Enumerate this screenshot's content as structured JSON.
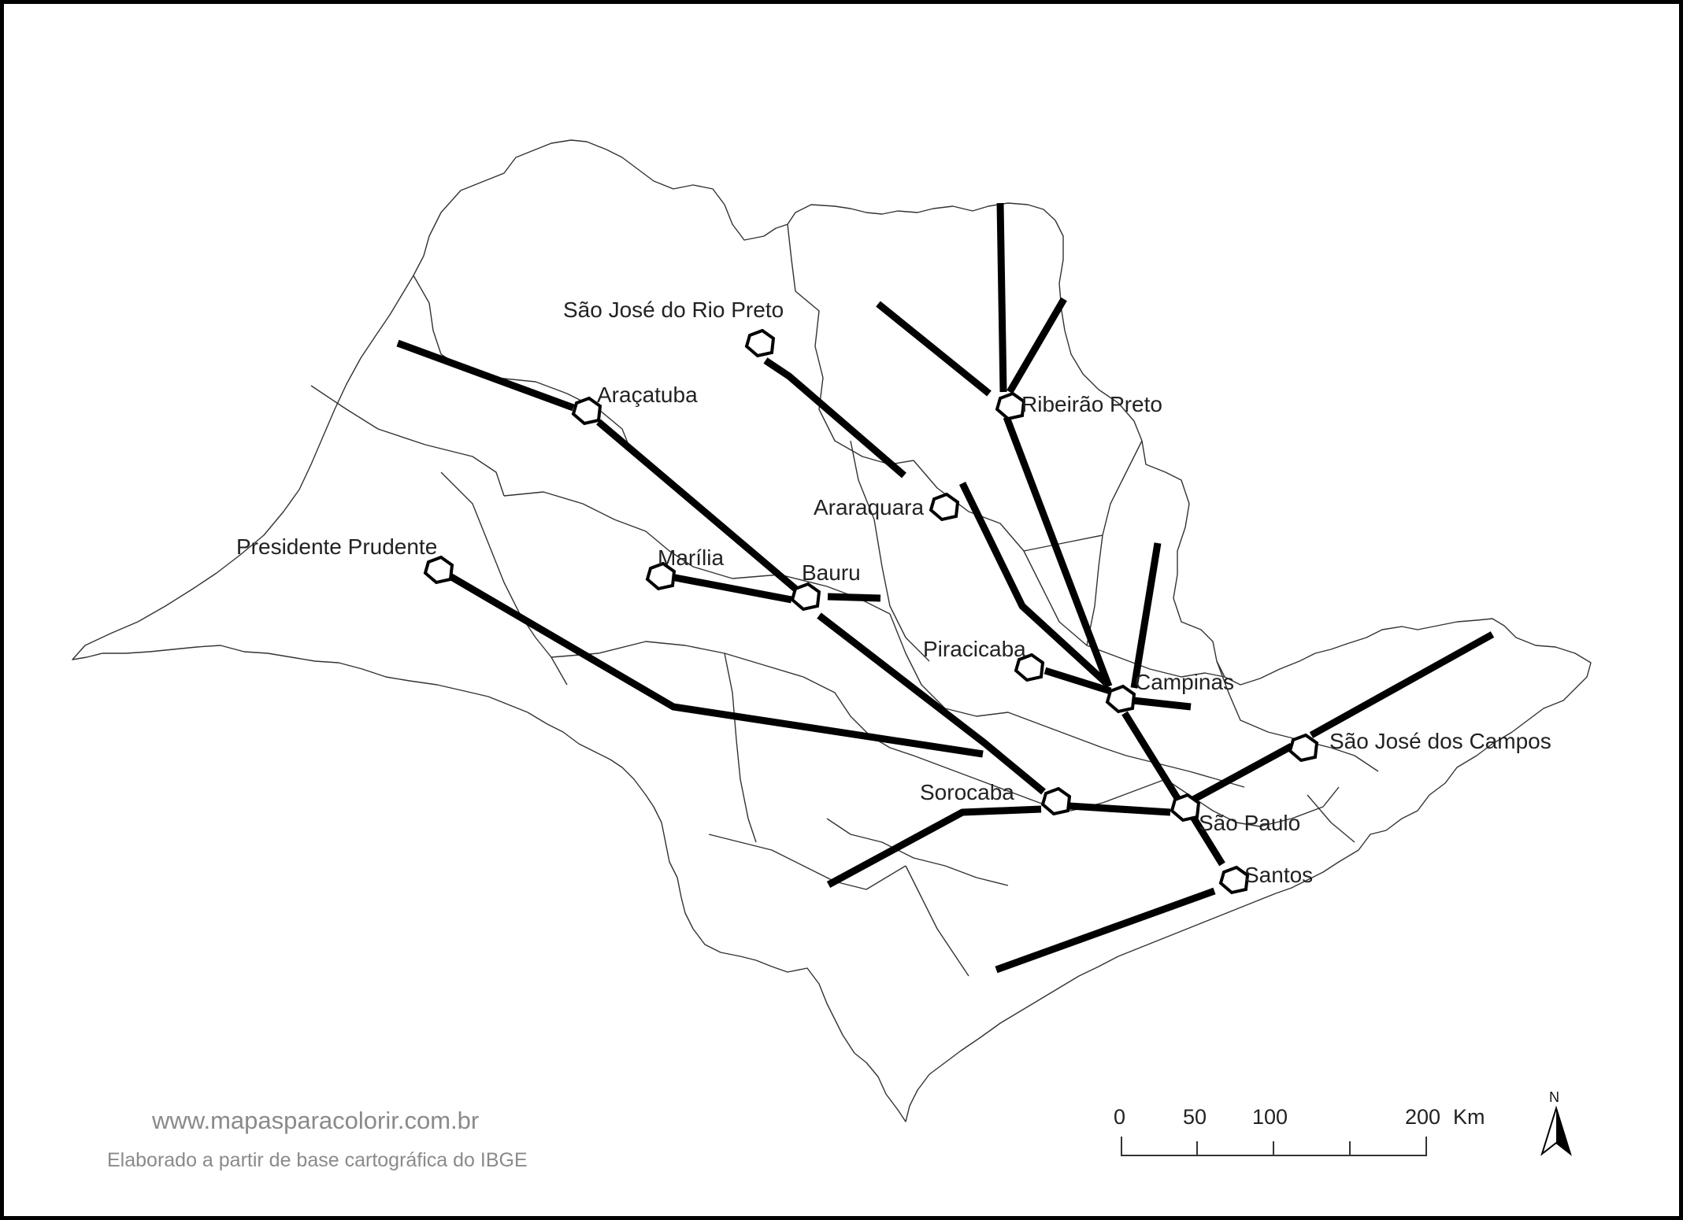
{
  "cities": [
    {
      "name": "São José do Rio Preto"
    },
    {
      "name": "Araçatuba"
    },
    {
      "name": "Ribeirão Preto"
    },
    {
      "name": "Araraquara"
    },
    {
      "name": "Presidente Prudente"
    },
    {
      "name": "Marília"
    },
    {
      "name": "Bauru"
    },
    {
      "name": "Piracicaba"
    },
    {
      "name": "Campinas"
    },
    {
      "name": "São José dos Campos"
    },
    {
      "name": "Sorocaba"
    },
    {
      "name": "São Paulo"
    },
    {
      "name": "Santos"
    }
  ],
  "scale_bar": {
    "labels": [
      "0",
      "50",
      "100",
      "200"
    ],
    "unit": "Km"
  },
  "north_arrow": {
    "label": "N"
  },
  "credits": {
    "website": "www.mapasparacolorir.com.br",
    "source": "Elaborado a partir de base cartográfica do IBGE"
  },
  "colors": {
    "roads": "#000000",
    "boundaries": "#333333",
    "credits": "#8a8a8a"
  }
}
